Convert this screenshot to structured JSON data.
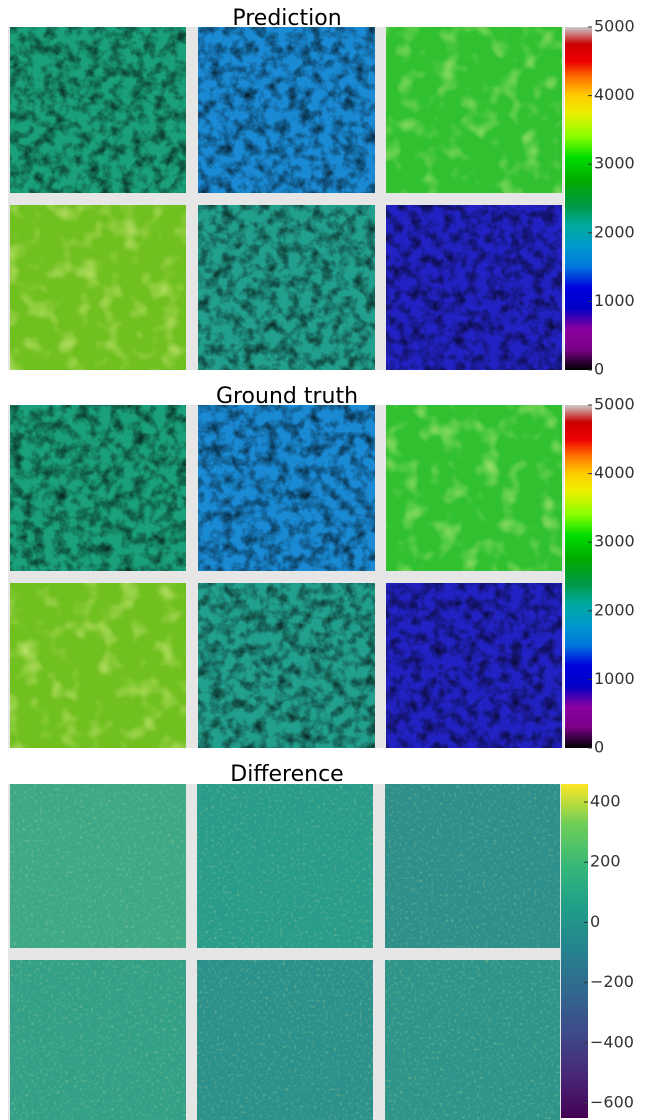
{
  "chart_data": [
    {
      "type": "image-grid",
      "title": "Prediction",
      "colormap": "nipy_spectral",
      "clim": [
        0,
        5000
      ],
      "cticks": [
        0,
        1000,
        2000,
        3000,
        4000,
        5000
      ]
    },
    {
      "type": "image-grid",
      "title": "Ground truth",
      "colormap": "nipy_spectral",
      "clim": [
        0,
        5000
      ],
      "cticks": [
        0,
        1000,
        2000,
        3000,
        4000,
        5000
      ]
    },
    {
      "type": "image-grid",
      "title": "Difference",
      "colormap": "viridis",
      "clim": [
        -650,
        460
      ],
      "cticks": [
        {
          "value": -600,
          "label": "−600"
        },
        {
          "value": -400,
          "label": "−400"
        },
        {
          "value": -200,
          "label": "−200"
        },
        0,
        200,
        400
      ]
    }
  ]
}
